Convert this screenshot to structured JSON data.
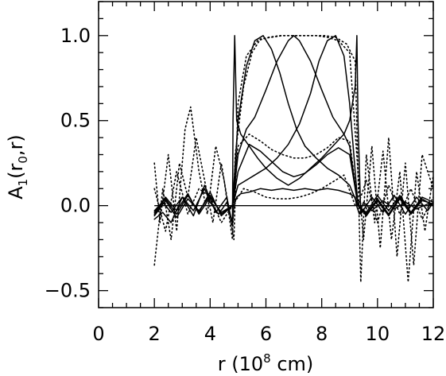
{
  "chart_data": {
    "type": "line",
    "title": "",
    "xlabel": {
      "prefix": "r (10",
      "exponent": "8",
      "suffix": " cm)"
    },
    "ylabel": {
      "base": "A",
      "subscript": "1",
      "middle": "(r",
      "subscript2": "0",
      "suffix": ",r)"
    },
    "xlim": [
      0,
      12
    ],
    "ylim": [
      -0.6,
      1.2
    ],
    "x_ticks": [
      0,
      2,
      4,
      6,
      8,
      10,
      12
    ],
    "x_tick_labels": [
      "0",
      "2",
      "4",
      "6",
      "8",
      "10",
      "12"
    ],
    "x_minor_step": 0.5,
    "y_ticks": [
      -0.5,
      0.0,
      0.5,
      1.0
    ],
    "y_tick_labels": [
      "−0.5",
      "0.0",
      "0.5",
      "1.0"
    ],
    "y_minor_step": 0.1,
    "grid": false,
    "legend": "none",
    "series": [
      {
        "style": "solid",
        "x": [
          2.0,
          2.3,
          2.6,
          3.0,
          3.4,
          3.8,
          4.0,
          4.3,
          4.6,
          4.8,
          4.85,
          4.95,
          5.1,
          5.4,
          5.8,
          6.2,
          6.6,
          7.0,
          7.4,
          7.8,
          8.2,
          8.6,
          9.0,
          9.2,
          9.25,
          9.35,
          9.5,
          9.8,
          10.2,
          10.6,
          11.0,
          11.4,
          11.8,
          12.0
        ],
        "y": [
          -0.05,
          0.02,
          -0.04,
          0.05,
          -0.03,
          0.1,
          0.02,
          -0.05,
          0.02,
          -0.1,
          0.0,
          0.05,
          0.07,
          0.08,
          0.1,
          0.09,
          0.1,
          0.09,
          0.1,
          0.09,
          0.1,
          0.09,
          0.07,
          0.05,
          0.0,
          -0.05,
          0.02,
          -0.03,
          0.03,
          -0.02,
          0.02,
          -0.02,
          0.01,
          0.0
        ]
      },
      {
        "style": "solid",
        "x": [
          2.0,
          2.3,
          2.6,
          3.0,
          3.4,
          3.8,
          4.2,
          4.6,
          4.8,
          4.82,
          4.88,
          4.95,
          5.1,
          5.4,
          5.7,
          6.0,
          6.4,
          6.8,
          7.2,
          7.6,
          8.0,
          8.4,
          8.8,
          9.0,
          9.2,
          9.26,
          9.3,
          9.4,
          9.8,
          10.2,
          10.6,
          11.0,
          11.4,
          11.8,
          12.0
        ],
        "y": [
          -0.08,
          -0.04,
          -0.1,
          0.05,
          -0.06,
          0.12,
          -0.04,
          0.05,
          -0.12,
          0.5,
          1.0,
          0.5,
          0.42,
          0.35,
          0.28,
          0.22,
          0.16,
          0.12,
          0.16,
          0.22,
          0.28,
          0.35,
          0.42,
          0.5,
          0.7,
          1.0,
          0.5,
          -0.05,
          0.05,
          -0.04,
          0.06,
          -0.05,
          0.05,
          -0.03,
          0.02
        ]
      },
      {
        "style": "solid",
        "x": [
          2.0,
          2.4,
          2.8,
          3.2,
          3.6,
          4.0,
          4.4,
          4.8,
          5.0,
          5.3,
          5.6,
          5.9,
          6.2,
          6.5,
          6.8,
          7.1,
          7.4,
          7.8,
          8.2,
          8.6,
          9.0,
          9.3,
          9.6,
          10.0,
          10.4,
          10.8,
          11.2,
          11.6,
          12.0
        ],
        "y": [
          -0.03,
          0.04,
          -0.05,
          0.06,
          -0.04,
          0.08,
          -0.06,
          0.0,
          0.5,
          0.82,
          0.97,
          1.0,
          0.92,
          0.78,
          0.6,
          0.45,
          0.35,
          0.28,
          0.22,
          0.18,
          0.12,
          0.0,
          -0.05,
          0.04,
          -0.05,
          0.05,
          -0.04,
          0.04,
          0.0
        ]
      },
      {
        "style": "solid",
        "x": [
          2.0,
          2.4,
          2.8,
          3.2,
          3.6,
          4.0,
          4.4,
          4.8,
          5.0,
          5.3,
          5.6,
          6.0,
          6.4,
          6.8,
          7.0,
          7.2,
          7.6,
          8.0,
          8.4,
          8.8,
          9.0,
          9.3,
          9.6,
          10.0,
          10.4,
          10.8,
          11.2,
          11.6,
          12.0
        ],
        "y": [
          -0.06,
          0.03,
          -0.07,
          0.04,
          -0.03,
          0.06,
          -0.05,
          0.0,
          0.3,
          0.45,
          0.52,
          0.68,
          0.85,
          0.97,
          1.0,
          0.97,
          0.85,
          0.68,
          0.52,
          0.42,
          0.35,
          0.0,
          -0.06,
          0.03,
          -0.06,
          0.04,
          -0.05,
          0.03,
          0.01
        ]
      },
      {
        "style": "solid",
        "x": [
          2.0,
          2.4,
          2.8,
          3.2,
          3.6,
          4.0,
          4.4,
          4.8,
          5.0,
          5.3,
          5.6,
          6.0,
          6.4,
          6.8,
          7.2,
          7.6,
          7.9,
          8.2,
          8.5,
          8.8,
          9.0,
          9.3,
          9.6,
          10.0,
          10.4,
          10.8,
          11.2,
          11.6,
          12.0
        ],
        "y": [
          -0.04,
          0.05,
          -0.03,
          0.07,
          -0.05,
          0.05,
          -0.04,
          0.0,
          0.12,
          0.15,
          0.18,
          0.22,
          0.28,
          0.36,
          0.48,
          0.66,
          0.85,
          0.97,
          1.0,
          0.88,
          0.6,
          0.0,
          -0.04,
          0.06,
          -0.03,
          0.06,
          -0.04,
          0.05,
          0.02
        ]
      },
      {
        "style": "solid",
        "x": [
          4.8,
          5.0,
          5.4,
          5.8,
          6.2,
          6.6,
          7.0,
          7.4,
          7.8,
          8.2,
          8.6,
          9.0,
          9.3
        ],
        "y": [
          0.0,
          0.2,
          0.36,
          0.32,
          0.26,
          0.2,
          0.17,
          0.19,
          0.24,
          0.3,
          0.34,
          0.3,
          0.0
        ]
      },
      {
        "style": "dotted",
        "x": [
          2.0,
          2.2,
          2.5,
          2.8,
          3.1,
          3.3,
          3.6,
          3.9,
          4.2,
          4.5,
          4.8,
          4.9,
          5.2,
          5.5,
          5.8,
          6.2,
          6.6,
          7.0,
          7.4,
          7.8,
          8.2,
          8.6,
          9.0,
          9.3,
          9.5,
          9.8,
          10.1,
          10.4,
          10.7,
          11.0,
          11.3,
          11.6,
          12.0
        ],
        "y": [
          0.25,
          -0.1,
          0.3,
          -0.15,
          0.45,
          0.58,
          0.2,
          -0.05,
          0.35,
          0.15,
          -0.2,
          0.3,
          0.7,
          0.9,
          0.98,
          0.99,
          1.0,
          1.0,
          1.0,
          1.0,
          0.99,
          0.97,
          0.9,
          0.2,
          -0.2,
          0.35,
          -0.25,
          0.4,
          -0.3,
          0.25,
          -0.35,
          0.3,
          0.1
        ]
      },
      {
        "style": "dotted",
        "x": [
          2.0,
          2.3,
          2.6,
          2.9,
          3.2,
          3.5,
          3.8,
          4.1,
          4.4,
          4.7,
          4.85,
          5.0,
          5.3,
          5.7,
          6.1,
          6.5,
          6.9,
          7.3,
          7.7,
          8.1,
          8.5,
          8.9,
          9.2,
          9.4,
          9.6,
          9.9,
          10.2,
          10.5,
          10.8,
          11.1,
          11.4,
          11.7,
          12.0
        ],
        "y": [
          -0.35,
          0.1,
          -0.2,
          0.25,
          0.05,
          0.4,
          0.15,
          -0.1,
          0.25,
          -0.05,
          -0.2,
          0.6,
          0.88,
          0.97,
          0.99,
          1.0,
          1.0,
          1.0,
          1.0,
          1.0,
          0.99,
          0.95,
          0.85,
          -0.45,
          0.3,
          -0.1,
          0.32,
          -0.2,
          0.2,
          -0.45,
          0.2,
          -0.15,
          0.18
        ]
      },
      {
        "style": "dotted",
        "x": [
          2.0,
          2.4,
          2.8,
          3.2,
          3.6,
          4.0,
          4.4,
          4.8,
          5.0,
          5.4,
          5.8,
          6.2,
          6.6,
          7.0,
          7.4,
          7.8,
          8.2,
          8.6,
          9.0,
          9.3,
          9.6,
          10.0,
          10.4,
          10.8,
          11.2,
          11.6,
          12.0
        ],
        "y": [
          0.1,
          -0.15,
          0.2,
          -0.05,
          0.1,
          0.05,
          -0.1,
          0.0,
          0.35,
          0.42,
          0.38,
          0.33,
          0.3,
          0.28,
          0.28,
          0.3,
          0.34,
          0.4,
          0.38,
          0.0,
          0.15,
          -0.1,
          0.12,
          -0.05,
          0.1,
          -0.08,
          0.05
        ]
      },
      {
        "style": "dotted",
        "x": [
          4.8,
          5.2,
          5.6,
          6.0,
          6.4,
          6.8,
          7.2,
          7.6,
          8.0,
          8.4,
          8.8,
          9.2
        ],
        "y": [
          0.0,
          0.1,
          0.08,
          0.05,
          0.04,
          0.04,
          0.05,
          0.07,
          0.1,
          0.14,
          0.18,
          0.0
        ]
      }
    ]
  }
}
